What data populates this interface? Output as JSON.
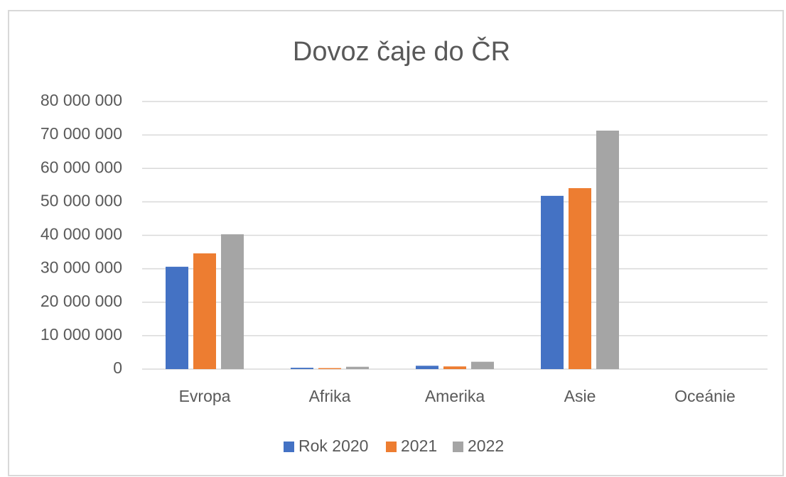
{
  "chart_data": {
    "type": "bar",
    "title": "Dovoz čaje do ČR",
    "categories": [
      "Evropa",
      "Afrika",
      "Amerika",
      "Asie",
      "Oceánie"
    ],
    "series": [
      {
        "name": "Rok 2020",
        "color": "#4472c4",
        "values": [
          30600000,
          400000,
          1000000,
          51800000,
          0
        ]
      },
      {
        "name": "2021",
        "color": "#ed7d31",
        "values": [
          34600000,
          300000,
          800000,
          54100000,
          0
        ]
      },
      {
        "name": "2022",
        "color": "#a5a5a5",
        "values": [
          40300000,
          700000,
          2200000,
          71300000,
          0
        ]
      }
    ],
    "ylim": [
      0,
      80000000
    ],
    "yticks": [
      0,
      {
        "value": 10000000,
        "label": "10 000 000"
      },
      {
        "value": 20000000,
        "label": "20 000 000"
      },
      {
        "value": 30000000,
        "label": "30 000 000"
      },
      {
        "value": 40000000,
        "label": "40 000 000"
      },
      {
        "value": 50000000,
        "label": "50 000 000"
      },
      {
        "value": 60000000,
        "label": "60 000 000"
      },
      {
        "value": 70000000,
        "label": "70 000 000"
      },
      {
        "value": 80000000,
        "label": "80 000 000"
      }
    ],
    "grid": true,
    "legend": "bottom"
  }
}
